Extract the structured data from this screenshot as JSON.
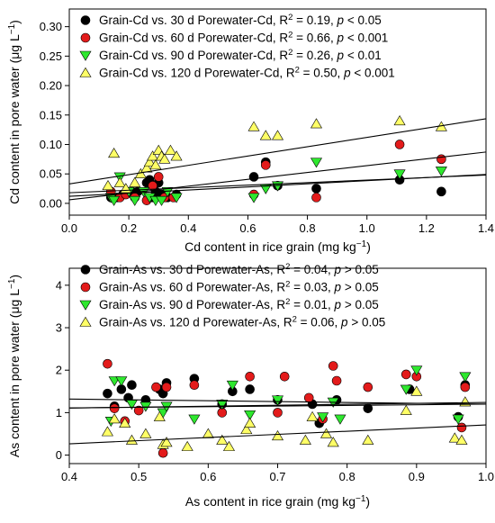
{
  "chart_data": [
    {
      "type": "scatter",
      "xlabel_main": "Cd content in rice grain (mg kg",
      "xlabel_sup": "−1",
      "xlabel_end": ")",
      "ylabel_main": "Cd content in pore water (μg L",
      "ylabel_sup": "−1",
      "ylabel_end": ")",
      "xlim": [
        0.0,
        1.4
      ],
      "ylim": [
        -0.02,
        0.33
      ],
      "xticks": [
        "0.0",
        "0.2",
        "0.4",
        "0.6",
        "0.8",
        "1.0",
        "1.2",
        "1.4"
      ],
      "xtick_values": [
        0.0,
        0.2,
        0.4,
        0.6,
        0.8,
        1.0,
        1.2,
        1.4
      ],
      "yticks": [
        "0.00",
        "0.05",
        "0.10",
        "0.15",
        "0.20",
        "0.25",
        "0.30"
      ],
      "ytick_values": [
        0.0,
        0.05,
        0.1,
        0.15,
        0.2,
        0.25,
        0.3
      ],
      "legend_placement": "top-left",
      "series": [
        {
          "legend": {
            "pre": "Grain-Cd vs. 30 d Porewater-Cd, R",
            "sup": "2",
            "mid": " = 0.19, ",
            "p": "p",
            "post": " < 0.05"
          },
          "marker": "circle",
          "color": "#000000",
          "fit": [
            0.018,
            0.0215
          ],
          "x": [
            0.14,
            0.16,
            0.18,
            0.21,
            0.23,
            0.26,
            0.27,
            0.28,
            0.29,
            0.3,
            0.31,
            0.33,
            0.36,
            0.62,
            0.66,
            0.7,
            0.83,
            1.11,
            1.25
          ],
          "y": [
            0.01,
            0.01,
            0.015,
            0.02,
            0.02,
            0.035,
            0.04,
            0.01,
            0.02,
            0.035,
            0.015,
            0.01,
            0.015,
            0.045,
            0.07,
            0.03,
            0.025,
            0.04,
            0.02
          ]
        },
        {
          "legend": {
            "pre": "Grain-Cd vs. 60 d Porewater-Cd, R",
            "sup": "2",
            "mid": " = 0.66, ",
            "p": "p",
            "post": " < 0.001"
          },
          "marker": "circle",
          "color": "#e31b1b",
          "fit": [
            0.006,
            0.058
          ],
          "x": [
            0.14,
            0.17,
            0.19,
            0.22,
            0.26,
            0.28,
            0.3,
            0.32,
            0.35,
            0.62,
            0.66,
            0.83,
            1.11,
            1.25
          ],
          "y": [
            0.02,
            0.01,
            0.015,
            0.01,
            0.005,
            0.03,
            0.045,
            0.01,
            0.01,
            0.015,
            0.065,
            0.01,
            0.1,
            0.075
          ]
        },
        {
          "legend": {
            "pre": "Grain-Cd vs. 90 d Porewater-Cd, R",
            "sup": "2",
            "mid": " = 0.26, ",
            "p": "p",
            "post": " < 0.01"
          },
          "marker": "triangle-down",
          "color": "#2ee82e",
          "fit": [
            0.012,
            0.0265
          ],
          "x": [
            0.14,
            0.15,
            0.17,
            0.2,
            0.22,
            0.25,
            0.27,
            0.29,
            0.31,
            0.33,
            0.36,
            0.62,
            0.66,
            0.7,
            0.83,
            1.11,
            1.25
          ],
          "y": [
            0.01,
            0.005,
            0.045,
            0.02,
            0.005,
            0.02,
            0.01,
            0.005,
            0.005,
            0.02,
            0.01,
            0.01,
            0.025,
            0.03,
            0.07,
            0.05,
            0.055
          ]
        },
        {
          "legend": {
            "pre": "Grain-Cd vs. 120 d Porewater-Cd, R",
            "sup": "2",
            "mid": " = 0.50, ",
            "p": "p",
            "post": " < 0.001"
          },
          "marker": "triangle-up",
          "color": "#ffff66",
          "fit": [
            0.033,
            0.079
          ],
          "x": [
            0.13,
            0.15,
            0.17,
            0.19,
            0.22,
            0.24,
            0.26,
            0.27,
            0.28,
            0.29,
            0.3,
            0.31,
            0.32,
            0.34,
            0.36,
            0.62,
            0.66,
            0.7,
            0.83,
            1.11,
            1.25
          ],
          "y": [
            0.03,
            0.085,
            0.035,
            0.025,
            0.035,
            0.05,
            0.06,
            0.07,
            0.08,
            0.065,
            0.09,
            0.08,
            0.075,
            0.09,
            0.08,
            0.13,
            0.115,
            0.115,
            0.135,
            0.14,
            0.13
          ]
        }
      ]
    },
    {
      "type": "scatter",
      "xlabel_main": "As content in rice grain (mg kg",
      "xlabel_sup": "−1",
      "xlabel_end": ")",
      "ylabel_main": "As content in pore water (μg L",
      "ylabel_sup": "−1",
      "ylabel_end": ")",
      "xlim": [
        0.4,
        1.0
      ],
      "ylim": [
        -0.2,
        4.4
      ],
      "xticks": [
        "0.4",
        "0.5",
        "0.6",
        "0.7",
        "0.8",
        "0.9",
        "1.0"
      ],
      "xtick_values": [
        0.4,
        0.5,
        0.6,
        0.7,
        0.8,
        0.9,
        1.0
      ],
      "yticks": [
        "0",
        "1",
        "2",
        "3",
        "4"
      ],
      "ytick_values": [
        0,
        1,
        2,
        3,
        4
      ],
      "legend_placement": "top-left",
      "series": [
        {
          "legend": {
            "pre": "Grain-As vs. 30 d Porewater-As, R",
            "sup": "2",
            "mid": " = 0.04, ",
            "p": "p",
            "post": " > 0.05"
          },
          "marker": "circle",
          "color": "#000000",
          "fit": [
            1.4,
            -0.2
          ],
          "x": [
            0.455,
            0.465,
            0.475,
            0.485,
            0.49,
            0.51,
            0.53,
            0.535,
            0.54,
            0.58,
            0.62,
            0.635,
            0.66,
            0.7,
            0.75,
            0.76,
            0.785,
            0.83,
            0.89,
            0.96,
            0.97
          ],
          "y": [
            1.45,
            1.15,
            1.55,
            1.35,
            1.65,
            1.3,
            1.55,
            1.45,
            1.7,
            1.8,
            1.2,
            1.5,
            1.55,
            1.3,
            1.2,
            0.75,
            1.3,
            1.1,
            1.55,
            0.9,
            1.65
          ]
        },
        {
          "legend": {
            "pre": "Grain-As vs. 60 d Porewater-As, R",
            "sup": "2",
            "mid": " = 0.03, ",
            "p": "p",
            "post": " > 0.05"
          },
          "marker": "circle",
          "color": "#e31b1b",
          "fit": [
            1.02,
            0.22
          ],
          "x": [
            0.455,
            0.465,
            0.48,
            0.5,
            0.525,
            0.535,
            0.54,
            0.58,
            0.62,
            0.66,
            0.7,
            0.71,
            0.745,
            0.765,
            0.78,
            0.785,
            0.83,
            0.885,
            0.9,
            0.965,
            0.97
          ],
          "y": [
            2.15,
            1.1,
            0.8,
            1.05,
            1.6,
            0.05,
            1.6,
            1.65,
            1.0,
            1.85,
            1.0,
            1.85,
            1.35,
            0.85,
            2.1,
            1.75,
            1.6,
            1.9,
            1.85,
            0.65,
            1.6
          ]
        },
        {
          "legend": {
            "pre": "Grain-As vs. 90 d Porewater-As, R",
            "sup": "2",
            "mid": " = 0.01, ",
            "p": "p",
            "post": " > 0.05"
          },
          "marker": "triangle-down",
          "color": "#2ee82e",
          "fit": [
            1.05,
            0.15
          ],
          "x": [
            0.46,
            0.465,
            0.475,
            0.49,
            0.51,
            0.535,
            0.54,
            0.58,
            0.62,
            0.635,
            0.66,
            0.7,
            0.765,
            0.78,
            0.79,
            0.885,
            0.9,
            0.96,
            0.97
          ],
          "y": [
            0.8,
            1.75,
            1.75,
            1.2,
            1.15,
            1.0,
            1.15,
            0.85,
            1.2,
            1.65,
            0.95,
            1.3,
            0.9,
            1.25,
            0.85,
            1.55,
            2.0,
            0.85,
            1.85
          ]
        },
        {
          "legend": {
            "pre": "Grain-As vs. 120 d Porewater-As, R",
            "sup": "2",
            "mid": " = 0.06, ",
            "p": "p",
            "post": " > 0.05"
          },
          "marker": "triangle-up",
          "color": "#ffff66",
          "fit": [
            -0.03,
            0.74
          ],
          "x": [
            0.455,
            0.465,
            0.48,
            0.49,
            0.51,
            0.53,
            0.535,
            0.54,
            0.57,
            0.6,
            0.62,
            0.63,
            0.655,
            0.66,
            0.7,
            0.74,
            0.75,
            0.77,
            0.78,
            0.83,
            0.885,
            0.9,
            0.955,
            0.965,
            0.97
          ],
          "y": [
            0.55,
            0.85,
            0.75,
            0.35,
            0.5,
            0.9,
            0.25,
            0.3,
            0.2,
            0.5,
            0.35,
            0.2,
            0.6,
            0.75,
            0.45,
            0.35,
            0.9,
            0.5,
            0.3,
            0.35,
            1.05,
            1.5,
            0.4,
            0.35,
            1.25
          ]
        }
      ]
    }
  ]
}
